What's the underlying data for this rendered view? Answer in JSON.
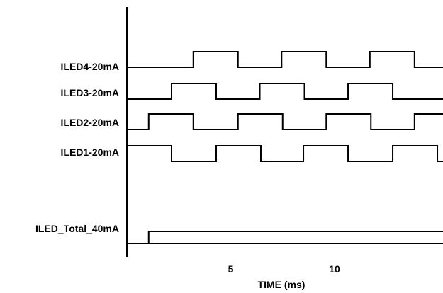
{
  "chart_data": {
    "type": "timing-diagram",
    "xlabel": "TIME (ms)",
    "x_ticks": [
      5,
      10
    ],
    "x_range": [
      0,
      15.5
    ],
    "signals": [
      {
        "name": "ILED4-20mA",
        "high_intervals": [
          [
            3.2,
            5.35
          ],
          [
            7.45,
            9.6
          ],
          [
            11.7,
            13.85
          ]
        ]
      },
      {
        "name": "ILED3-20mA",
        "high_intervals": [
          [
            2.15,
            4.3
          ],
          [
            6.4,
            8.55
          ],
          [
            10.65,
            12.8
          ]
        ]
      },
      {
        "name": "ILED2-20mA",
        "high_intervals": [
          [
            1.05,
            3.2
          ],
          [
            5.35,
            7.5
          ],
          [
            9.6,
            11.75
          ],
          [
            13.85,
            15.5
          ]
        ]
      },
      {
        "name": "ILED1-20mA",
        "high_intervals": [
          [
            0,
            2.15
          ],
          [
            4.3,
            6.45
          ],
          [
            8.5,
            10.65
          ],
          [
            12.8,
            14.95
          ]
        ]
      },
      {
        "name": "ILED_Total_40mA",
        "steps": [
          [
            0,
            1
          ],
          [
            1.05,
            2
          ],
          [
            15.5,
            2
          ]
        ]
      }
    ]
  }
}
